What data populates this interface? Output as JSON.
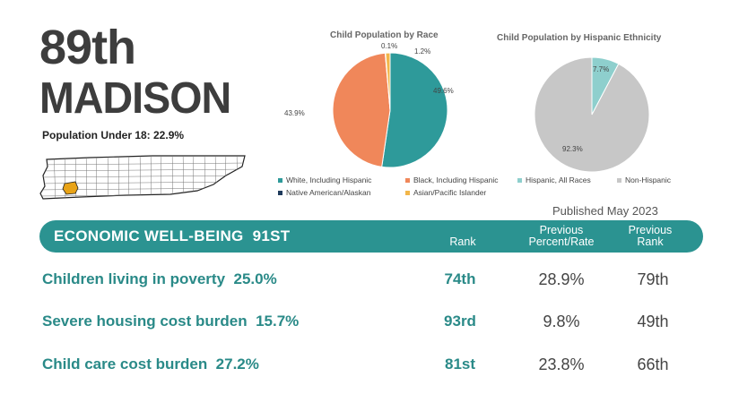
{
  "header": {
    "rank": "89th",
    "county": "MADISON",
    "population": "Population Under 18: 22.9%"
  },
  "map": {
    "highlight_color": "#e8a317"
  },
  "race_chart": {
    "title": "Child Population by Race",
    "chart_data": {
      "type": "pie",
      "title": "Child Population by Race",
      "slices": [
        {
          "label": "White, Including Hispanic",
          "value": 49.6,
          "display": "49.6%",
          "color": "#2e9a9a"
        },
        {
          "label": "Black, Including Hispanic",
          "value": 43.9,
          "display": "43.9%",
          "color": "#f0875a"
        },
        {
          "label": "Native American/Alaskan",
          "value": 0.1,
          "display": "0.1%",
          "color": "#1f3b5c"
        },
        {
          "label": "Asian/Pacific Islander",
          "value": 1.2,
          "display": "1.2%",
          "color": "#f2b64a"
        }
      ]
    }
  },
  "ethnicity_chart": {
    "title": "Child Population by Hispanic Ethnicity",
    "chart_data": {
      "type": "pie",
      "title": "Child Population by Hispanic Ethnicity",
      "slices": [
        {
          "label": "Hispanic, All Races",
          "value": 7.7,
          "display": "7.7%",
          "color": "#8ecfcd"
        },
        {
          "label": "Non-Hispanic",
          "value": 92.3,
          "display": "92.3%",
          "color": "#c7c7c7"
        }
      ]
    }
  },
  "published": "Published May 2023",
  "section": {
    "title": "ECONOMIC WELL-BEING",
    "rank": "91ST",
    "col_rank": "Rank",
    "col_prev_pct": [
      "Previous",
      "Percent/Rate"
    ],
    "col_prev_rank": [
      "Previous",
      "Rank"
    ],
    "accent": "#2b9391"
  },
  "rows": [
    {
      "label": "Children living in poverty",
      "value": "25.0%",
      "rank": "74th",
      "prev_pct": "28.9%",
      "prev_rank": "79th"
    },
    {
      "label": "Severe housing cost burden",
      "value": "15.7%",
      "rank": "93rd",
      "prev_pct": "9.8%",
      "prev_rank": "49th"
    },
    {
      "label": "Child care cost burden",
      "value": "27.2%",
      "rank": "81st",
      "prev_pct": "23.8%",
      "prev_rank": "66th"
    }
  ]
}
